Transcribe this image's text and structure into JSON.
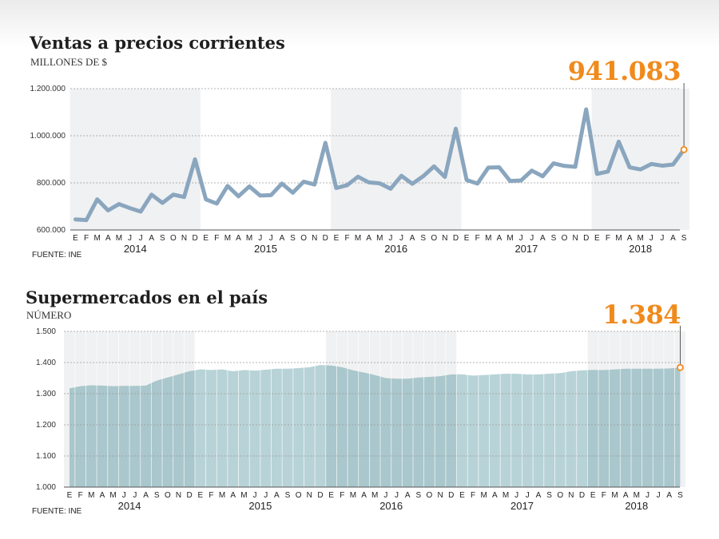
{
  "months": [
    "E",
    "F",
    "M",
    "A",
    "M",
    "J",
    "J",
    "A",
    "S",
    "O",
    "N",
    "D"
  ],
  "colors": {
    "accent": "#f08a1c",
    "line": "#8aa6bf",
    "area": "#a9c7cc",
    "area_alt": "#b8d3d7",
    "band": "#f0f1f2"
  },
  "chart_data": [
    {
      "type": "line",
      "title": "Ventas a precios corrientes",
      "ylabel": "MILLONES DE $",
      "highlight_label": "941.083",
      "source": "FUENTE: INE",
      "ylim": [
        600000,
        1200000
      ],
      "yticks": [
        600000,
        800000,
        1000000,
        1200000
      ],
      "ytick_labels": [
        "600.000",
        "800.000",
        "1.000.000",
        "1.200.000"
      ],
      "years": [
        "2014",
        "2015",
        "2016",
        "2017",
        "2018"
      ],
      "grid": true,
      "series": [
        {
          "values": [
            645000,
            642000,
            730000,
            683000,
            710000,
            693000,
            678000,
            750000,
            715000,
            750000,
            740000,
            900000,
            730000,
            712000,
            787000,
            743000,
            785000,
            746000,
            748000,
            797000,
            758000,
            805000,
            793000,
            970000,
            778000,
            790000,
            826000,
            802000,
            798000,
            775000,
            830000,
            796000,
            828000,
            870000,
            825000,
            1030000,
            812000,
            797000,
            865000,
            866000,
            808000,
            810000,
            852000,
            828000,
            883000,
            872000,
            868000,
            1112000,
            838000,
            848000,
            975000,
            866000,
            857000,
            880000,
            873000,
            878000,
            941083
          ]
        }
      ]
    },
    {
      "type": "area",
      "title": "Supermercados en el país",
      "ylabel": "NÚMERO",
      "highlight_label": "1.384",
      "source": "FUENTE: INE",
      "ylim": [
        1000,
        1500
      ],
      "yticks": [
        1000,
        1100,
        1200,
        1300,
        1400,
        1500
      ],
      "ytick_labels": [
        "1.000",
        "1.100",
        "1.200",
        "1.300",
        "1.400",
        "1.500"
      ],
      "years": [
        "2014",
        "2015",
        "2016",
        "2017",
        "2018"
      ],
      "grid": true,
      "series": [
        {
          "values": [
            1317,
            1324,
            1327,
            1326,
            1324,
            1325,
            1325,
            1326,
            1342,
            1352,
            1362,
            1372,
            1378,
            1376,
            1378,
            1372,
            1376,
            1374,
            1377,
            1380,
            1380,
            1382,
            1385,
            1392,
            1390,
            1385,
            1375,
            1368,
            1360,
            1350,
            1348,
            1348,
            1352,
            1354,
            1356,
            1362,
            1362,
            1358,
            1360,
            1362,
            1364,
            1364,
            1362,
            1362,
            1364,
            1366,
            1372,
            1375,
            1376,
            1376,
            1378,
            1380,
            1380,
            1380,
            1380,
            1381,
            1384
          ]
        }
      ]
    }
  ]
}
